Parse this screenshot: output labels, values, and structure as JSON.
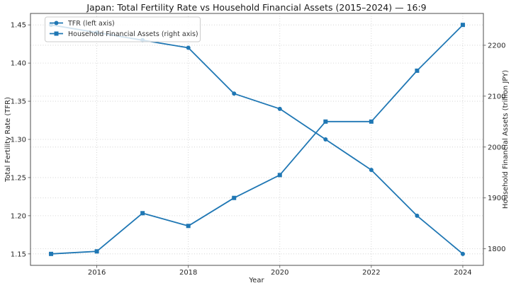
{
  "chart_data": {
    "type": "line",
    "title": "Japan: Total Fertility Rate vs Household Financial Assets (2015–2024) — 16:9",
    "xlabel": "Year",
    "ylabel_left": "Total Fertility Rate (TFR)",
    "ylabel_right": "Household Financial Assets (trillion JPY)",
    "x": [
      2015,
      2016,
      2017,
      2018,
      2019,
      2020,
      2021,
      2022,
      2023,
      2024
    ],
    "series": [
      {
        "name": "TFR (left axis)",
        "axis": "left",
        "marker": "circle",
        "color": "#1f77b4",
        "values": [
          1.45,
          1.44,
          1.43,
          1.42,
          1.36,
          1.34,
          1.3,
          1.26,
          1.2,
          1.15
        ]
      },
      {
        "name": "Household Financial Assets (right axis)",
        "axis": "right",
        "marker": "square",
        "color": "#1f77b4",
        "values": [
          1790,
          1795,
          1870,
          1845,
          1900,
          1945,
          2050,
          2050,
          2150,
          2240
        ]
      }
    ],
    "x_axis": {
      "lim": [
        2014.55,
        2024.45
      ],
      "tick_values": [
        2016,
        2018,
        2020,
        2022,
        2024
      ],
      "tick_labels": [
        "2016",
        "2018",
        "2020",
        "2022",
        "2024"
      ]
    },
    "left_axis": {
      "lim": [
        1.135,
        1.465
      ],
      "tick_values": [
        1.15,
        1.2,
        1.25,
        1.3,
        1.35,
        1.4,
        1.45
      ],
      "tick_labels": [
        "1.15",
        "1.20",
        "1.25",
        "1.30",
        "1.35",
        "1.40",
        "1.45"
      ]
    },
    "right_axis": {
      "lim": [
        1767.5,
        2262.5
      ],
      "tick_values": [
        1800,
        1900,
        2000,
        2100,
        2200
      ],
      "tick_labels": [
        "1800",
        "1900",
        "2000",
        "2100",
        "2200"
      ]
    },
    "legend": {
      "position": "top-left",
      "entries": [
        "TFR (left axis)",
        "Household Financial Assets (right axis)"
      ]
    },
    "grid": {
      "on": true,
      "style": "dotted",
      "color": "#cccccc"
    },
    "colors": {
      "line": "#1f77b4",
      "spine": "#4d4d4d",
      "text": "#262626",
      "grid": "#cccccc",
      "background": "#ffffff"
    }
  }
}
